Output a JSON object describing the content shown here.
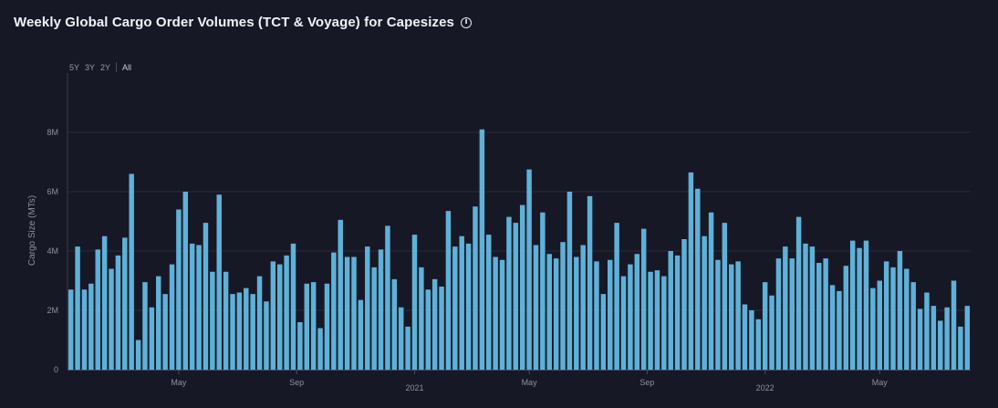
{
  "title": "Weekly Global Cargo Order Volumes (TCT & Voyage) for Capesizes",
  "info_icon": "info-icon",
  "range_buttons": [
    "5Y",
    "3Y",
    "2Y",
    "All"
  ],
  "colors": {
    "bar": "#5fb1d8",
    "background": "#161826",
    "grid": "#2a2d3c"
  },
  "chart_data": {
    "type": "bar",
    "title": "Weekly Global Cargo Order Volumes (TCT & Voyage) for Capesizes",
    "ylabel": "Cargo Size (MTs)",
    "xlabel": "",
    "ylim": [
      0,
      10000000
    ],
    "yticks": [
      {
        "value": 0,
        "label": "0"
      },
      {
        "value": 2000000,
        "label": "2M"
      },
      {
        "value": 4000000,
        "label": "4M"
      },
      {
        "value": 6000000,
        "label": "6M"
      },
      {
        "value": 8000000,
        "label": "8M"
      }
    ],
    "xticks": [
      {
        "index": 16.5,
        "label": "May"
      },
      {
        "index": 34,
        "label": "Sep"
      },
      {
        "index": 51.5,
        "label": "2021"
      },
      {
        "index": 68.5,
        "label": "May"
      },
      {
        "index": 86,
        "label": "Sep"
      },
      {
        "index": 103.5,
        "label": "2022"
      },
      {
        "index": 120.5,
        "label": "May"
      }
    ],
    "values": [
      2700000,
      4150000,
      2700000,
      2900000,
      4050000,
      4500000,
      3400000,
      3850000,
      4450000,
      6600000,
      1000000,
      2950000,
      2100000,
      3150000,
      2550000,
      3550000,
      5400000,
      6000000,
      4250000,
      4200000,
      4950000,
      3300000,
      5900000,
      3300000,
      2550000,
      2600000,
      2750000,
      2550000,
      3150000,
      2300000,
      3650000,
      3550000,
      3850000,
      4250000,
      1600000,
      2900000,
      2950000,
      1400000,
      2900000,
      3950000,
      5050000,
      3800000,
      3800000,
      2350000,
      4150000,
      3450000,
      4050000,
      4850000,
      3050000,
      2100000,
      1450000,
      4550000,
      3450000,
      2700000,
      3050000,
      2800000,
      5350000,
      4150000,
      4500000,
      4250000,
      5500000,
      8100000,
      4550000,
      3800000,
      3700000,
      5150000,
      4950000,
      5550000,
      6750000,
      4200000,
      5300000,
      3900000,
      3750000,
      4300000,
      6000000,
      3800000,
      4200000,
      5850000,
      3650000,
      2550000,
      3700000,
      4950000,
      3150000,
      3550000,
      3900000,
      4750000,
      3300000,
      3350000,
      3150000,
      4000000,
      3850000,
      4400000,
      6650000,
      6100000,
      4500000,
      5300000,
      3700000,
      4950000,
      3550000,
      3650000,
      2200000,
      2000000,
      1700000,
      2950000,
      2500000,
      3750000,
      4150000,
      3750000,
      5150000,
      4250000,
      4150000,
      3600000,
      3750000,
      2850000,
      2650000,
      3500000,
      4350000,
      4100000,
      4350000,
      2750000,
      3000000,
      3650000,
      3450000,
      4000000,
      3400000,
      2950000,
      2050000,
      2600000,
      2150000,
      1650000,
      2100000,
      3000000,
      1450000,
      2150000
    ]
  }
}
